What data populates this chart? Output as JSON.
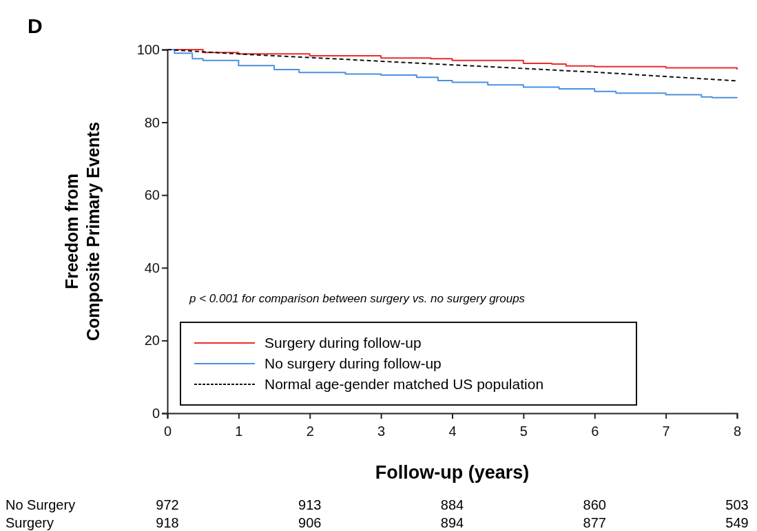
{
  "chart_data": {
    "type": "step",
    "title": "D",
    "xlabel": "Follow-up (years)",
    "ylabel": "Freedom from\nComposite Primary Events",
    "xlim": [
      0,
      8
    ],
    "xticks": [
      0,
      1,
      2,
      3,
      4,
      5,
      6,
      7,
      8
    ],
    "ylim": [
      0,
      100
    ],
    "yticks": [
      0,
      20,
      40,
      60,
      80,
      100
    ],
    "legend": "bottom left",
    "grid": false,
    "series": [
      {
        "name": "Surgery during follow-up",
        "color": "#ee2a2a",
        "line_style": "solid",
        "x": [
          0,
          0.5,
          1,
          2,
          3,
          3.7,
          4,
          5,
          5.4,
          5.6,
          6,
          7,
          8
        ],
        "values": [
          100,
          99.2,
          98.8,
          98.3,
          97.7,
          97.5,
          97,
          96.2,
          96,
          95.5,
          95.3,
          95,
          94.5
        ]
      },
      {
        "name": "No surgery during follow-up",
        "color": "#4a90e2",
        "line_style": "solid",
        "x": [
          0,
          0.1,
          0.35,
          0.5,
          1,
          1.5,
          1.85,
          2.5,
          3,
          3.5,
          3.8,
          4,
          4.5,
          5,
          5.5,
          6,
          6.3,
          6.6,
          7,
          7.5,
          7.65,
          8
        ],
        "values": [
          100,
          99,
          97.5,
          97,
          95.6,
          94.5,
          93.7,
          93.3,
          93,
          92.4,
          91.5,
          91,
          90.3,
          89.7,
          89.2,
          88.5,
          88,
          88,
          87.6,
          87,
          86.8,
          86.7
        ]
      },
      {
        "name": "Normal age-gender matched US population",
        "color": "#111111",
        "type": "line",
        "line_style": "dashed",
        "x": [
          0,
          1,
          2,
          3,
          4,
          5,
          6,
          7,
          8
        ],
        "values": [
          100,
          98.8,
          97.8,
          96.8,
          95.8,
          94.8,
          93.8,
          92.6,
          91.4
        ]
      }
    ],
    "annotations": [
      "p < 0.001 for comparison between surgery vs. no surgery groups",
      "No Surgery",
      "972",
      "913",
      "884",
      "860",
      "503",
      "Surgery",
      "918",
      "906",
      "894",
      "877",
      "549"
    ]
  }
}
